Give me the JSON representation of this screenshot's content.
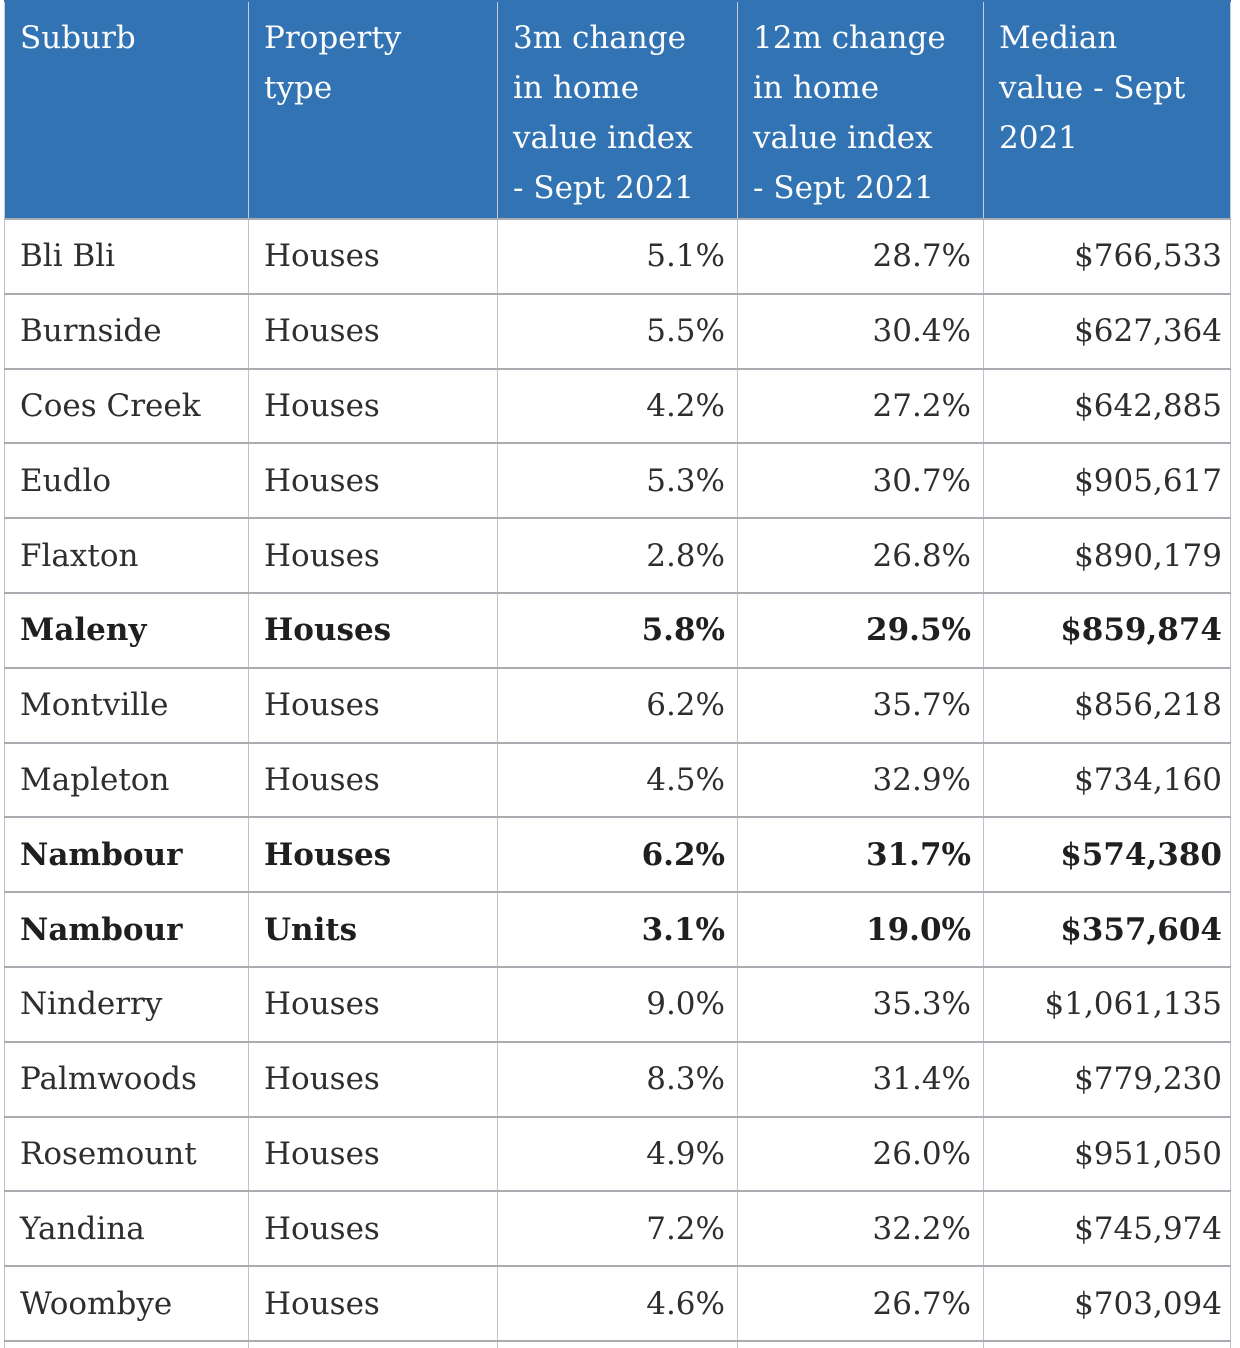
{
  "chart_data": {
    "type": "table",
    "title": "",
    "legend": "none",
    "grid": "on",
    "columns": [
      {
        "label": "Suburb",
        "header_display": "Suburb",
        "align_values": "left"
      },
      {
        "label": "Property type",
        "header_display": "Property\ntype",
        "align_values": "left"
      },
      {
        "label": "3m change in home value index - Sept 2021",
        "header_display": "3m change\nin home\nvalue index\n- Sept 2021",
        "align_values": "right"
      },
      {
        "label": "12m change in home value index - Sept 2021",
        "header_display": "12m change\nin home\nvalue index\n- Sept 2021",
        "align_values": "right"
      },
      {
        "label": "Median value - Sept 2021",
        "header_display": "Median\nvalue - Sept\n2021",
        "align_values": "right"
      }
    ],
    "rows": [
      {
        "suburb": "Bli Bli",
        "property_type": "Houses",
        "change_3m_pct": "5.1%",
        "change_12m_pct": "28.7%",
        "median_value": "$766,533",
        "bold": false
      },
      {
        "suburb": "Burnside",
        "property_type": "Houses",
        "change_3m_pct": "5.5%",
        "change_12m_pct": "30.4%",
        "median_value": "$627,364",
        "bold": false
      },
      {
        "suburb": "Coes Creek",
        "property_type": "Houses",
        "change_3m_pct": "4.2%",
        "change_12m_pct": "27.2%",
        "median_value": "$642,885",
        "bold": false
      },
      {
        "suburb": "Eudlo",
        "property_type": "Houses",
        "change_3m_pct": "5.3%",
        "change_12m_pct": "30.7%",
        "median_value": "$905,617",
        "bold": false
      },
      {
        "suburb": "Flaxton",
        "property_type": "Houses",
        "change_3m_pct": "2.8%",
        "change_12m_pct": "26.8%",
        "median_value": "$890,179",
        "bold": false
      },
      {
        "suburb": "Maleny",
        "property_type": "Houses",
        "change_3m_pct": "5.8%",
        "change_12m_pct": "29.5%",
        "median_value": "$859,874",
        "bold": true
      },
      {
        "suburb": "Montville",
        "property_type": "Houses",
        "change_3m_pct": "6.2%",
        "change_12m_pct": "35.7%",
        "median_value": "$856,218",
        "bold": false
      },
      {
        "suburb": "Mapleton",
        "property_type": "Houses",
        "change_3m_pct": "4.5%",
        "change_12m_pct": "32.9%",
        "median_value": "$734,160",
        "bold": false
      },
      {
        "suburb": "Nambour",
        "property_type": "Houses",
        "change_3m_pct": "6.2%",
        "change_12m_pct": "31.7%",
        "median_value": "$574,380",
        "bold": true
      },
      {
        "suburb": "Nambour",
        "property_type": "Units",
        "change_3m_pct": "3.1%",
        "change_12m_pct": "19.0%",
        "median_value": "$357,604",
        "bold": true
      },
      {
        "suburb": "Ninderry",
        "property_type": "Houses",
        "change_3m_pct": "9.0%",
        "change_12m_pct": "35.3%",
        "median_value": "$1,061,135",
        "bold": false
      },
      {
        "suburb": "Palmwoods",
        "property_type": "Houses",
        "change_3m_pct": "8.3%",
        "change_12m_pct": "31.4%",
        "median_value": "$779,230",
        "bold": false
      },
      {
        "suburb": "Rosemount",
        "property_type": "Houses",
        "change_3m_pct": "4.9%",
        "change_12m_pct": "26.0%",
        "median_value": "$951,050",
        "bold": false
      },
      {
        "suburb": "Yandina",
        "property_type": "Houses",
        "change_3m_pct": "7.2%",
        "change_12m_pct": "32.2%",
        "median_value": "$745,974",
        "bold": false
      },
      {
        "suburb": "Woombye",
        "property_type": "Houses",
        "change_3m_pct": "4.6%",
        "change_12m_pct": "26.7%",
        "median_value": "$703,094",
        "bold": false
      }
    ]
  },
  "colors": {
    "header_bg": "#3273b4",
    "header_text": "#fdfdfd",
    "body_text": "#2e2e2e",
    "row_border": "#a9adb1",
    "column_border": "#bdc1c5",
    "background": "#ffffff"
  }
}
